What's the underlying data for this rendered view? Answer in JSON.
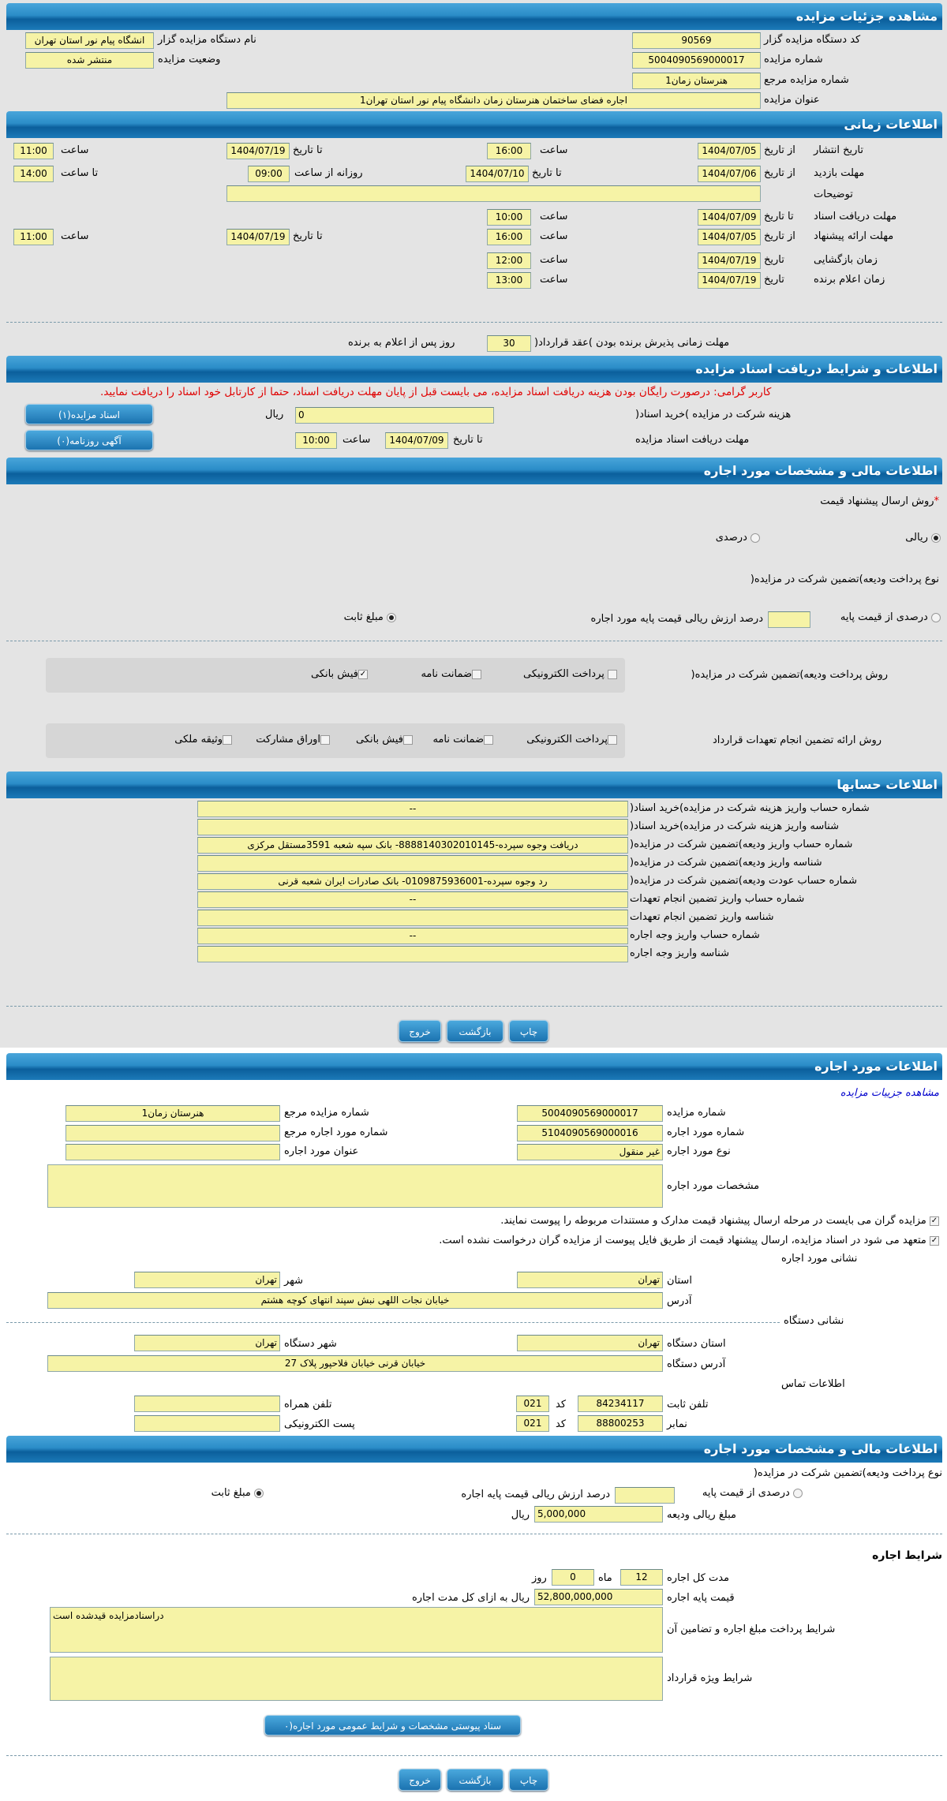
{
  "colors": {
    "header": "#1c7ab8",
    "field": "#f6f3a6",
    "background": "#e4e4e4",
    "warning": "#e00000",
    "link": "#0000cc"
  },
  "s1": {
    "title": "مشاهده جزئیات مزایده",
    "org_code_label": "کد دستگاه مزایده گزار",
    "org_code": "90569",
    "org_name_label": "نام دستگاه مزایده گزار",
    "org_name": "انشگاه پیام نور استان تهران",
    "auction_no_label": "شماره مزایده",
    "auction_no": "5004090569000017",
    "status_label": "وضعیت مزایده",
    "status": "منتشر شده",
    "ref_no_label": "شماره مزایده مرجع",
    "ref_no": "هنرستان زمان1",
    "subject_label": "عنوان مزایده",
    "subject": "اجاره فضای ساختمان هنرستان زمان دانشگاه پیام نور استان تهران1"
  },
  "s2": {
    "title": "اطلاعات زمانی",
    "from_date": "از تاریخ",
    "to_date": "تا تاریخ",
    "time": "ساعت",
    "to_time": "تا ساعت",
    "date": "تاریخ",
    "daily_from": "روزانه از ساعت",
    "publish_label": "تاریخ انتشار",
    "publish_from": "1404/07/05",
    "publish_from_time": "16:00",
    "publish_to": "1404/07/19",
    "publish_to_time": "11:00",
    "visit_label": "مهلت بازدید",
    "visit_from": "1404/07/06",
    "visit_to": "1404/07/10",
    "visit_daily_from": "09:00",
    "visit_daily_to": "14:00",
    "notes_label": "توضیحات",
    "notes": "",
    "docs_label": "مهلت دریافت اسناد",
    "docs_to": "1404/07/09",
    "docs_time": "10:00",
    "offer_label": "مهلت ارائه پیشنهاد",
    "offer_from": "1404/07/05",
    "offer_from_time": "16:00",
    "offer_to": "1404/07/19",
    "offer_to_time": "11:00",
    "opening_label": "زمان بازگشایی",
    "opening_date": "1404/07/19",
    "opening_time": "12:00",
    "winner_label": "زمان اعلام برنده",
    "winner_date": "1404/07/19",
    "winner_time": "13:00",
    "accept_label": "مهلت زمانی پذیرش برنده بودن )عقد قرارداد(",
    "accept_days": "30",
    "accept_suffix": "روز پس از اعلام به برنده"
  },
  "s3": {
    "title": "اطلاعات و شرایط دریافت اسناد مزایده",
    "warning": "کاربر گرامی: درصورت رایگان بودن هزینه دریافت اسناد مزایده، می بایست قبل از پایان مهلت دریافت اسناد، حتما از کارتابل خود اسناد را دریافت نمایید.",
    "fee_label": "هزینه شرکت در مزایده )خرید اسناد(",
    "fee": "0",
    "rial": "ریال",
    "deadline_label": "مهلت دریافت اسناد مزایده",
    "to_date": "تا تاریخ",
    "deadline_date": "1404/07/09",
    "time": "ساعت",
    "deadline_time": "10:00",
    "docs_button": "اسناد مزایده(۱)",
    "ads_button": "آگهی روزنامه(۰)"
  },
  "s4": {
    "title": "اطلاعات مالی و مشخصات مورد اجاره",
    "price_method_label": "روش ارسال پیشنهاد قیمت",
    "required": "*",
    "rial_option": "ریالی",
    "percent_option": "درصدی",
    "price_method_selected": "ریالی",
    "deposit_type_label": "نوع پرداخت ودیعه)تضمین شرکت در مزایده(",
    "percent_of_base": "درصدی از قیمت پایه",
    "percent_value": "",
    "percent_suffix": "درصد ارزش ریالی قیمت پایه مورد اجاره",
    "fixed_amount": "مبلغ ثابت",
    "deposit_type_selected": "مبلغ ثابت",
    "deposit_method_label": "روش پرداخت ودیعه)تضمین شرکت در مزایده(",
    "deposit_methods": [
      {
        "label": "پرداخت الکترونیکی",
        "checked": false
      },
      {
        "label": "ضمانت نامه",
        "checked": false
      },
      {
        "label": "فیش بانکی",
        "checked": true
      }
    ],
    "guarantee_label": "روش ارائه تضمین انجام تعهدات قرارداد",
    "guarantee_methods": [
      {
        "label": "پرداخت الکترونیکی",
        "checked": false
      },
      {
        "label": "ضمانت نامه",
        "checked": false
      },
      {
        "label": "فیش بانکی",
        "checked": false
      },
      {
        "label": "اوراق مشارکت",
        "checked": false
      },
      {
        "label": "وثیقه ملکی",
        "checked": false
      }
    ]
  },
  "s5": {
    "title": "اطلاعات حسابها",
    "rows": [
      {
        "label": "شماره حساب واریز هزینه شرکت در مزایده)خرید اسناد(",
        "value": "--"
      },
      {
        "label": "شناسه واریز هزینه شرکت در مزایده)خرید اسناد(",
        "value": ""
      },
      {
        "label": "شماره حساب واریز ودیعه)تضمین شرکت در مزایده(",
        "value": "دریافت وجوه سپرده-888814030201014­5- بانک سپه شعبه 3591مستقل مرکزی"
      },
      {
        "label": "شناسه واریز ودیعه)تضمین شرکت در مزایده(",
        "value": ""
      },
      {
        "label": "شماره حساب عودت ودیعه)تضمین شرکت در مزایده(",
        "value": "رد وجوه سپرده-0109875936001- بانک صادرات ایران شعبه قرنی"
      },
      {
        "label": "شماره حساب واریز تضمین انجام تعهدات",
        "value": "--"
      },
      {
        "label": "شناسه واریز تضمین انجام تعهدات",
        "value": ""
      },
      {
        "label": "شماره حساب واریز وجه اجاره",
        "value": "--"
      },
      {
        "label": "شناسه واریز وجه اجاره",
        "value": ""
      }
    ]
  },
  "buttons": {
    "print": "چاپ",
    "back": "بازگشت",
    "exit": "خروج"
  },
  "s6": {
    "title": "اطلاعات مورد اجاره",
    "link": "مشاهده جزییات مزایده",
    "auction_no_label": "شماره مزایده",
    "auction_no": "5004090569000017",
    "ref_no_label": "شماره مزایده مرجع",
    "ref_no": "هنرستان زمان1",
    "item_no_label": "شماره مورد اجاره",
    "item_no": "5104090569000016",
    "item_ref_label": "شماره مورد اجاره مرجع",
    "item_ref": "",
    "item_type_label": "نوع مورد اجاره",
    "item_type": "غیر منقول",
    "item_title_label": "عنوان مورد اجاره",
    "item_title": "",
    "specs_label": "مشخصات مورد اجاره",
    "specs": "",
    "check1": "مزایده گران می بایست در مرحله ارسال پیشنهاد قیمت مدارک و مستندات مربوطه را پیوست نمایند.",
    "check2": "متعهد می شود در اسناد مزایده، ارسال پیشنهاد قیمت از طریق فایل پیوست از مزایده گران درخواست نشده است.",
    "item_address_title": "نشانی مورد اجاره",
    "province_label": "استان",
    "province": "تهران",
    "city_label": "شهر",
    "city": "تهران",
    "address_label": "آدرس",
    "address": "خیابان نجات اللهی نبش سپند انتهای کوچه هشتم",
    "org_address_title": "نشانی دستگاه",
    "org_province_label": "استان دستگاه",
    "org_province": "تهران",
    "org_city_label": "شهر دستگاه",
    "org_city": "تهران",
    "org_address_label": "آدرس دستگاه",
    "org_address": "خیابان قرنی خیابان فلاحپور پلاک 27",
    "contact_title": "اطلاعات تماس",
    "phone_label": "تلفن ثابت",
    "phone": "84234117",
    "code_label": "کد",
    "phone_code": "021",
    "mobile_label": "تلفن همراه",
    "mobile": "",
    "fax_label": "نمابر",
    "fax": "88800253",
    "fax_code": "021",
    "email_label": "پست الکترونیکی",
    "email": ""
  },
  "s7": {
    "title": "اطلاعات مالی و مشخصات مورد اجاره",
    "deposit_type_label": "نوع پرداخت ودیعه)تضمین شرکت در مزایده(",
    "percent_of_base": "درصدی از قیمت پایه",
    "percent_value": "",
    "percent_suffix": "درصد ارزش ریالی قیمت پایه اجاره",
    "fixed_amount": "مبلغ ثابت",
    "deposit_type_selected": "مبلغ ثابت",
    "deposit_amount_label": "مبلغ ریالی ودیعه",
    "deposit_amount": "5,000,000",
    "rial": "ریال",
    "terms_title": "شرایط اجاره",
    "duration_label": "مدت کل اجاره",
    "months": "12",
    "month_label": "ماه",
    "days": "0",
    "day_label": "روز",
    "base_price_label": "قیمت پایه اجاره",
    "base_price": "52,800,000,000",
    "base_price_suffix": "ریال به ازای کل مدت اجاره",
    "payment_terms_label": "شرایط پرداخت مبلغ اجاره و تضامین آن",
    "payment_terms": "دراسنادمزایده قیدشده است",
    "special_terms_label": "شرایط ویژه قرارداد",
    "special_terms": "",
    "attachment_button": "سناد پیوستی مشخصات و شرایط عمومی مورد اجاره(۰"
  }
}
